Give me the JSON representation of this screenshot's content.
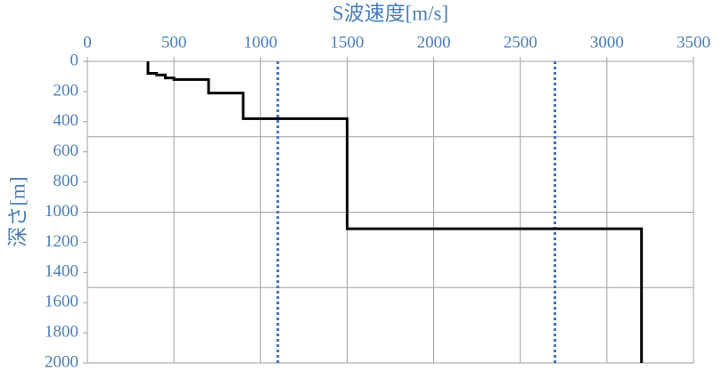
{
  "chart_data": {
    "type": "line",
    "x_label": "S波速度[m/s]",
    "y_label": "深さ[m]",
    "series": [
      {
        "x": [
          350,
          350,
          400,
          400,
          450,
          450,
          500,
          500,
          700,
          700,
          900,
          900,
          1500,
          1500,
          3200,
          3200
        ],
        "values": [
          0,
          80,
          80,
          90,
          90,
          110,
          110,
          120,
          120,
          210,
          210,
          380,
          380,
          1110,
          1110,
          2000
        ],
        "color": "#000000"
      }
    ],
    "reference_lines": {
      "x": [
        1100,
        2700
      ],
      "color": "#4472c4",
      "style": "dotted"
    },
    "xlim": [
      0,
      3500
    ],
    "xticks": [
      0,
      500,
      1000,
      1500,
      2000,
      2500,
      3000,
      3500
    ],
    "ylim": [
      0,
      2000
    ],
    "yticks": [
      0,
      200,
      400,
      600,
      800,
      1000,
      1200,
      1400,
      1600,
      1800,
      2000
    ],
    "y_inverted": true,
    "x_axis_position": "top",
    "grid": true,
    "xgrid": [
      500,
      1000,
      1500,
      2000,
      2500,
      3000,
      3500
    ],
    "ygrid": [
      500,
      1000,
      1500,
      2000
    ],
    "label_color": "#4a7ebb"
  }
}
